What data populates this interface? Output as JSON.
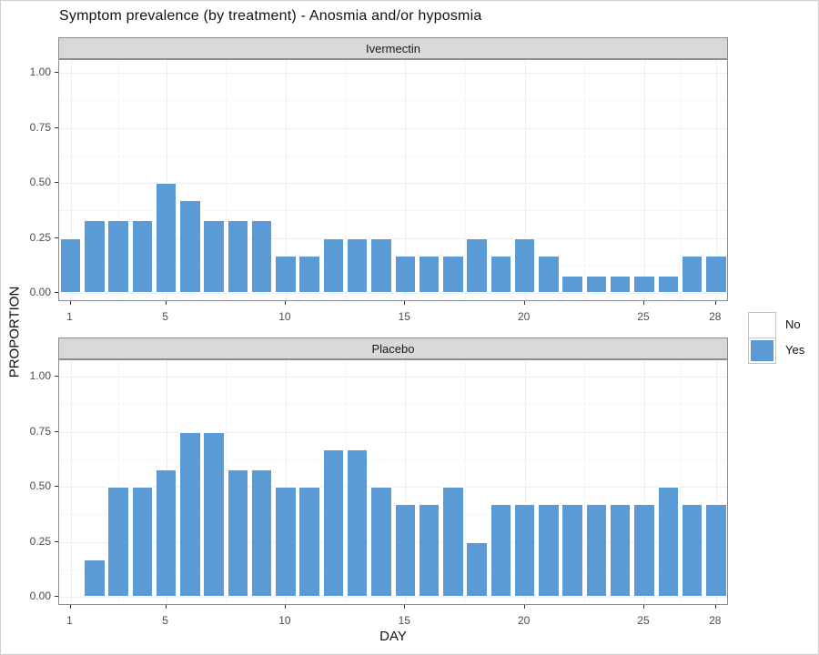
{
  "title": "Symptom prevalence (by treatment) - Anosmia and/or hyposmia",
  "legend": {
    "items": [
      {
        "label": "No",
        "color": "#ffffff"
      },
      {
        "label": "Yes",
        "color": "#5b9bd5"
      }
    ]
  },
  "chart_data": {
    "type": "bar",
    "title": "Symptom prevalence (by treatment) - Anosmia and/or hyposmia",
    "xlabel": "DAY",
    "ylabel": "PROPORTION",
    "x_breaks": [
      1,
      5,
      10,
      15,
      20,
      25,
      28
    ],
    "y_breaks": [
      0,
      0.25,
      0.5,
      0.75,
      1.0
    ],
    "y_tick_labels": [
      "0.00",
      "0.25",
      "0.50",
      "0.75",
      "1.00"
    ],
    "ylim": [
      0,
      1
    ],
    "grid": true,
    "legend_position": "right",
    "legend_entries": [
      "No",
      "Yes"
    ],
    "bar_fill_yes": "#5b9bd5",
    "bar_outline": "#ffffff",
    "days": [
      1,
      2,
      3,
      4,
      5,
      6,
      7,
      8,
      9,
      10,
      11,
      12,
      13,
      14,
      15,
      16,
      17,
      18,
      19,
      20,
      21,
      22,
      23,
      24,
      25,
      26,
      27,
      28
    ],
    "facets": [
      {
        "label": "Ivermectin",
        "values": [
          0.25,
          0.33,
          0.33,
          0.33,
          0.5,
          0.42,
          0.33,
          0.33,
          0.33,
          0.17,
          0.17,
          0.25,
          0.25,
          0.25,
          0.17,
          0.17,
          0.17,
          0.25,
          0.17,
          0.25,
          0.17,
          0.08,
          0.08,
          0.08,
          0.08,
          0.08,
          0.17,
          0.17
        ]
      },
      {
        "label": "Placebo",
        "values": [
          0.0,
          0.17,
          0.5,
          0.5,
          0.58,
          0.75,
          0.75,
          0.58,
          0.58,
          0.5,
          0.5,
          0.67,
          0.67,
          0.5,
          0.42,
          0.42,
          0.5,
          0.25,
          0.42,
          0.42,
          0.42,
          0.42,
          0.42,
          0.42,
          0.42,
          0.5,
          0.42,
          0.42
        ]
      }
    ]
  }
}
